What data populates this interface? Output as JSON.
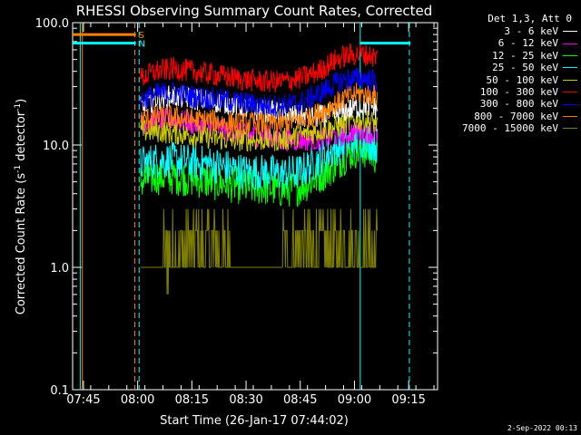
{
  "chart_data": {
    "type": "line",
    "title": "RHESSI Observing Summary Count Rates, Corrected",
    "xlabel": "Start Time (26-Jan-17 07:44:02)",
    "ylabel": "Corrected Count Rate (s",
    "ylabel_sup": "-1",
    "ylabel_rest": " detector",
    "ylabel_close": ")",
    "yscale": "log",
    "ylim": [
      0.1,
      100.0
    ],
    "xlim_minutes": [
      -3,
      98
    ],
    "x_ticks": [
      {
        "label": "07:45",
        "minute": 0
      },
      {
        "label": "08:00",
        "minute": 15
      },
      {
        "label": "08:15",
        "minute": 30
      },
      {
        "label": "08:30",
        "minute": 45
      },
      {
        "label": "08:45",
        "minute": 60
      },
      {
        "label": "09:00",
        "minute": 75
      },
      {
        "label": "09:15",
        "minute": 90
      }
    ],
    "y_ticks": [
      {
        "label": "0.1",
        "value": 0.1
      },
      {
        "label": "1.0",
        "value": 1.0
      },
      {
        "label": "10.0",
        "value": 10.0
      },
      {
        "label": "100.0",
        "value": 100.0
      }
    ],
    "data_window_minutes": [
      15.8,
      81.3
    ],
    "series": [
      {
        "name": "3 - 6 keV",
        "color": "#ffffff",
        "x": [
          15.8,
          20,
          25,
          30,
          35,
          40,
          45,
          50,
          55,
          60,
          65,
          70,
          72,
          75,
          78,
          81.3
        ],
        "y": [
          20,
          24,
          25,
          24,
          23,
          22,
          20,
          19,
          18,
          17,
          17,
          18,
          19,
          20,
          21,
          20
        ]
      },
      {
        "name": "6 - 12 keV",
        "color": "#ff00ff",
        "x": [
          15.8,
          20,
          25,
          30,
          35,
          40,
          45,
          50,
          55,
          60,
          65,
          70,
          72,
          75,
          78,
          81.3
        ],
        "y": [
          15,
          16,
          16,
          15,
          14,
          13,
          12,
          12,
          11,
          11,
          11,
          12,
          12,
          13,
          13,
          12
        ]
      },
      {
        "name": "12 - 25 keV",
        "color": "#00ff00",
        "x": [
          15.8,
          20,
          25,
          30,
          35,
          40,
          45,
          50,
          55,
          60,
          65,
          70,
          72,
          75,
          78,
          81.3
        ],
        "y": [
          5,
          5.5,
          5.5,
          5.3,
          5.0,
          4.8,
          4.5,
          4.5,
          4.3,
          4.5,
          5.5,
          7,
          8,
          9,
          9,
          8
        ]
      },
      {
        "name": "25 - 50 keV",
        "color": "#00ffff",
        "x": [
          15.8,
          20,
          25,
          30,
          35,
          40,
          45,
          50,
          55,
          60,
          65,
          70,
          72,
          75,
          78,
          81.3
        ],
        "y": [
          7,
          7.5,
          7.5,
          7.2,
          7.0,
          6.5,
          6.0,
          6.0,
          5.8,
          6.0,
          7.5,
          9.5,
          10,
          11,
          11,
          10
        ]
      },
      {
        "name": "50 - 100 keV",
        "color": "#cccc00",
        "x": [
          15.8,
          20,
          25,
          30,
          35,
          40,
          45,
          50,
          55,
          60,
          65,
          70,
          72,
          75,
          78,
          81.3
        ],
        "y": [
          13,
          13,
          12.5,
          12,
          11.5,
          11,
          11,
          11,
          11,
          12,
          13,
          14,
          15,
          16,
          16,
          15
        ]
      },
      {
        "name": "100 - 300 keV",
        "color": "#ff0000",
        "x": [
          15.8,
          20,
          25,
          30,
          35,
          40,
          45,
          50,
          55,
          60,
          65,
          70,
          72,
          75,
          78,
          81.3
        ],
        "y": [
          35,
          40,
          42,
          40,
          38,
          36,
          34,
          33,
          33,
          35,
          40,
          50,
          53,
          55,
          55,
          52
        ]
      },
      {
        "name": "300 - 800 keV",
        "color": "#0000ff",
        "x": [
          15.8,
          20,
          25,
          30,
          35,
          40,
          45,
          50,
          55,
          60,
          65,
          70,
          72,
          75,
          78,
          81.3
        ],
        "y": [
          23,
          26,
          27,
          25,
          24,
          23,
          22,
          21,
          21,
          22,
          26,
          32,
          34,
          35,
          35,
          33
        ]
      },
      {
        "name": "800 - 7000 keV",
        "color": "#ff8000",
        "x": [
          15.8,
          20,
          25,
          30,
          35,
          40,
          45,
          50,
          55,
          60,
          65,
          70,
          72,
          75,
          78,
          81.3
        ],
        "y": [
          16,
          17,
          17,
          16,
          16,
          15,
          15,
          15,
          15,
          16,
          18,
          22,
          24,
          26,
          26,
          25
        ]
      },
      {
        "name": "7000 - 15000 keV",
        "color": "#808000",
        "x": [
          15.8,
          20,
          22,
          25,
          30,
          35,
          40,
          45,
          50,
          55,
          57,
          60,
          65,
          70,
          75,
          78,
          81.3
        ],
        "y": [
          1.0,
          1.0,
          1.0,
          1.0,
          1.2,
          1.5,
          1.3,
          1.0,
          1.0,
          1.0,
          1.0,
          1.0,
          1.0,
          1.6,
          1.9,
          2.0,
          1.0
        ]
      }
    ],
    "flags": [
      {
        "label": "S",
        "color": "#ff8000",
        "x_start": -3,
        "x_end": 14.5,
        "y": 80
      },
      {
        "label": "N",
        "color": "#00ffff",
        "x_start": -3,
        "x_end": 14.5,
        "y": 68
      },
      {
        "label": "",
        "color": "#00ffff",
        "x_start": 76.5,
        "x_end": 90.5,
        "y": 68
      }
    ],
    "vlines": [
      {
        "minute": -0.9,
        "color": "#00ffff",
        "style": "solid"
      },
      {
        "minute": -0.3,
        "color": "#ff8000",
        "style": "solid"
      },
      {
        "minute": 14.2,
        "color": "#ff8000",
        "style": "dashed"
      },
      {
        "minute": 15.4,
        "color": "#00ffff",
        "style": "dashed"
      },
      {
        "minute": 76.6,
        "color": "#00ffff",
        "style": "solid"
      },
      {
        "minute": 90.2,
        "color": "#00ffff",
        "style": "dashed"
      }
    ]
  },
  "legend": {
    "header": "Det 1,3, Att 0"
  },
  "footer": {
    "date_stamp": "2-Sep-2022 00:13"
  }
}
